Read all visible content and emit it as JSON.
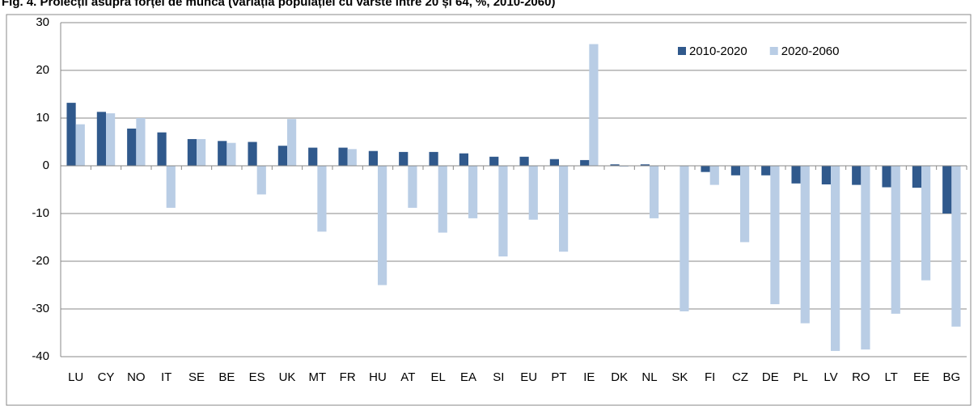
{
  "chart_data": {
    "type": "bar",
    "title": "Fig. 4. Proiecții asupra forței de muncă (variația populației cu vârste între 20 și 64, %, 2010-2060)",
    "categories": [
      "LU",
      "CY",
      "NO",
      "IT",
      "SE",
      "BE",
      "ES",
      "UK",
      "MT",
      "FR",
      "HU",
      "AT",
      "EL",
      "EA",
      "SI",
      "EU",
      "PT",
      "IE",
      "DK",
      "NL",
      "SK",
      "FI",
      "CZ",
      "DE",
      "PL",
      "LV",
      "RO",
      "LT",
      "EE",
      "BG"
    ],
    "series": [
      {
        "name": "2010-2020",
        "color": "#30598c",
        "values": [
          13.2,
          11.3,
          7.8,
          7,
          5.6,
          5.2,
          5,
          4.2,
          3.8,
          3.8,
          3.1,
          2.9,
          2.9,
          2.6,
          1.9,
          1.9,
          1.4,
          1.2,
          0.3,
          0.3,
          0,
          -1.3,
          -2,
          -2,
          -3.7,
          -3.9,
          -4,
          -4.5,
          -4.6,
          -10
        ]
      },
      {
        "name": "2020-2060",
        "color": "#b9cde5",
        "values": [
          8.7,
          11,
          10,
          -8.8,
          5.6,
          4.8,
          -6,
          9.8,
          -13.8,
          3.5,
          -25,
          -8.8,
          -14,
          -11,
          -19,
          -11.3,
          -18,
          25.5,
          -0.2,
          -11,
          -30.5,
          -4,
          -16,
          -29,
          -33,
          -38.8,
          -38.5,
          -31,
          -24,
          -33.7
        ]
      }
    ],
    "ylim": [
      -40,
      30
    ],
    "yticks": [
      -40,
      -30,
      -20,
      -10,
      0,
      10,
      20,
      30
    ],
    "grid": true,
    "legend": "top-right"
  }
}
